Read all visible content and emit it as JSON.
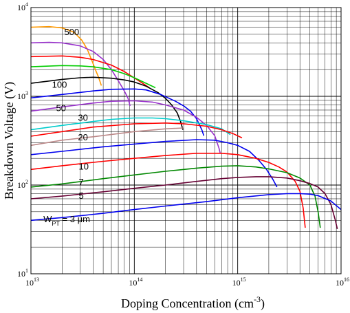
{
  "chart_data": {
    "type": "line",
    "xlabel": {
      "main": "Doping Concentration (cm",
      "exp": "-3",
      "tail": ")"
    },
    "ylabel": "Breakdown Voltage (V)",
    "x_scale": "log",
    "y_scale": "log",
    "xlim": [
      10000000000000.0,
      1e+16
    ],
    "ylim": [
      10,
      10000
    ],
    "grid": true,
    "x_ticks": [
      {
        "value": 10000000000000.0,
        "base": "10",
        "exp": "13"
      },
      {
        "value": 100000000000000.0,
        "base": "10",
        "exp": "14"
      },
      {
        "value": 1000000000000000.0,
        "base": "10",
        "exp": "15"
      },
      {
        "value": 1e+16,
        "base": "10",
        "exp": "16"
      }
    ],
    "y_ticks": [
      {
        "value": 10,
        "base": "10",
        "exp": "1"
      },
      {
        "value": 100,
        "base": "10",
        "exp": "2"
      },
      {
        "value": 1000,
        "base": "10",
        "exp": "3"
      },
      {
        "value": 10000,
        "base": "10",
        "exp": "4"
      }
    ],
    "annotations": [
      {
        "text": "500",
        "x": 21000000000000.0,
        "y": 4900
      },
      {
        "text": "100",
        "x": 16000000000000.0,
        "y": 1250
      },
      {
        "text": "50",
        "x": 17500000000000.0,
        "y": 680
      },
      {
        "text": "30",
        "x": 28500000000000.0,
        "y": 530
      },
      {
        "text": "20",
        "x": 28500000000000.0,
        "y": 320
      },
      {
        "text": "10",
        "x": 29000000000000.0,
        "y": 150
      },
      {
        "text": "7",
        "x": 29000000000000.0,
        "y": 100
      },
      {
        "text": "5",
        "x": 29000000000000.0,
        "y": 70
      }
    ],
    "wpt_label": {
      "w": "W",
      "sub": "PT",
      "rest": " = 3 μm",
      "x": 13200000000000.0,
      "y": 38
    },
    "series": [
      {
        "color": "#ff9900",
        "points": [
          [
            10000000000000.0,
            6000
          ],
          [
            15000000000000.0,
            6100
          ],
          [
            20000000000000.0,
            5900
          ],
          [
            26000000000000.0,
            5300
          ],
          [
            31000000000000.0,
            4300
          ],
          [
            35000000000000.0,
            3400
          ],
          [
            39000000000000.0,
            2500
          ],
          [
            42000000000000.0,
            2000
          ],
          [
            45000000000000.0,
            1650
          ],
          [
            48000000000000.0,
            1320
          ]
        ]
      },
      {
        "color": "#9933cc",
        "points": [
          [
            10000000000000.0,
            4000
          ],
          [
            15000000000000.0,
            4050
          ],
          [
            20000000000000.0,
            4000
          ],
          [
            30000000000000.0,
            3700
          ],
          [
            40000000000000.0,
            3200
          ],
          [
            50000000000000.0,
            2600
          ],
          [
            60000000000000.0,
            2000
          ],
          [
            70000000000000.0,
            1500
          ],
          [
            80000000000000.0,
            1150
          ],
          [
            87000000000000.0,
            950
          ],
          [
            91000000000000.0,
            780
          ]
        ]
      },
      {
        "color": "#ff0000",
        "points": [
          [
            10000000000000.0,
            2800
          ],
          [
            20000000000000.0,
            2850
          ],
          [
            30000000000000.0,
            2750
          ],
          [
            40000000000000.0,
            2600
          ],
          [
            60000000000000.0,
            2250
          ],
          [
            80000000000000.0,
            1900
          ],
          [
            110000000000000.0,
            1500
          ],
          [
            140000000000000.0,
            1250
          ]
        ]
      },
      {
        "color": "#00cc00",
        "points": [
          [
            10000000000000.0,
            2150
          ],
          [
            20000000000000.0,
            2220
          ],
          [
            30000000000000.0,
            2200
          ],
          [
            40000000000000.0,
            2150
          ],
          [
            60000000000000.0,
            2000
          ],
          [
            80000000000000.0,
            1800
          ],
          [
            100000000000000.0,
            1620
          ],
          [
            130000000000000.0,
            1400
          ],
          [
            160000000000000.0,
            1250
          ]
        ]
      },
      {
        "color": "#000000",
        "points": [
          [
            10000000000000.0,
            1400
          ],
          [
            20000000000000.0,
            1550
          ],
          [
            30000000000000.0,
            1620
          ],
          [
            40000000000000.0,
            1640
          ],
          [
            60000000000000.0,
            1600
          ],
          [
            80000000000000.0,
            1530
          ],
          [
            100000000000000.0,
            1450
          ],
          [
            130000000000000.0,
            1300
          ],
          [
            170000000000000.0,
            1100
          ],
          [
            200000000000000.0,
            950
          ],
          [
            230000000000000.0,
            800
          ],
          [
            260000000000000.0,
            650
          ],
          [
            280000000000000.0,
            520
          ],
          [
            295000000000000.0,
            420
          ]
        ]
      },
      {
        "color": "#0000ee",
        "points": [
          [
            10000000000000.0,
            960
          ],
          [
            20000000000000.0,
            1050
          ],
          [
            40000000000000.0,
            1150
          ],
          [
            60000000000000.0,
            1200
          ],
          [
            100000000000000.0,
            1210
          ],
          [
            130000000000000.0,
            1180
          ],
          [
            180000000000000.0,
            1050
          ],
          [
            250000000000000.0,
            880
          ],
          [
            300000000000000.0,
            780
          ],
          [
            350000000000000.0,
            680
          ],
          [
            400000000000000.0,
            560
          ],
          [
            450000000000000.0,
            420
          ],
          [
            470000000000000.0,
            360
          ]
        ]
      },
      {
        "color": "#9933cc",
        "points": [
          [
            10000000000000.0,
            680
          ],
          [
            20000000000000.0,
            760
          ],
          [
            40000000000000.0,
            840
          ],
          [
            60000000000000.0,
            880
          ],
          [
            100000000000000.0,
            890
          ],
          [
            150000000000000.0,
            860
          ],
          [
            200000000000000.0,
            800
          ],
          [
            300000000000000.0,
            700
          ],
          [
            400000000000000.0,
            580
          ],
          [
            500000000000000.0,
            470
          ],
          [
            600000000000000.0,
            360
          ],
          [
            660000000000000.0,
            260
          ],
          [
            680000000000000.0,
            225
          ]
        ]
      },
      {
        "color": "#00cccc",
        "points": [
          [
            10000000000000.0,
            420
          ],
          [
            20000000000000.0,
            470
          ],
          [
            40000000000000.0,
            520
          ],
          [
            60000000000000.0,
            550
          ],
          [
            100000000000000.0,
            570
          ],
          [
            150000000000000.0,
            570
          ],
          [
            200000000000000.0,
            560
          ],
          [
            300000000000000.0,
            530
          ],
          [
            500000000000000.0,
            480
          ],
          [
            700000000000000.0,
            430
          ],
          [
            850000000000000.0,
            370
          ]
        ]
      },
      {
        "color": "#ff0000",
        "points": [
          [
            10000000000000.0,
            355
          ],
          [
            20000000000000.0,
            400
          ],
          [
            40000000000000.0,
            450
          ],
          [
            100000000000000.0,
            490
          ],
          [
            200000000000000.0,
            500
          ],
          [
            300000000000000.0,
            490
          ],
          [
            500000000000000.0,
            460
          ],
          [
            700000000000000.0,
            420
          ],
          [
            900000000000000.0,
            380
          ],
          [
            1100000000000000.0,
            340
          ]
        ]
      },
      {
        "color": "#bb8888",
        "points": [
          [
            10000000000000.0,
            280
          ],
          [
            20000000000000.0,
            320
          ],
          [
            40000000000000.0,
            350
          ],
          [
            100000000000000.0,
            400
          ],
          [
            200000000000000.0,
            430
          ],
          [
            300000000000000.0,
            440
          ]
        ]
      },
      {
        "color": "#0000ee",
        "points": [
          [
            10000000000000.0,
            220
          ],
          [
            20000000000000.0,
            240
          ],
          [
            50000000000000.0,
            270
          ],
          [
            100000000000000.0,
            290
          ],
          [
            200000000000000.0,
            310
          ],
          [
            400000000000000.0,
            325
          ],
          [
            600000000000000.0,
            320
          ],
          [
            800000000000000.0,
            300
          ],
          [
            1000000000000000.0,
            280
          ],
          [
            1300000000000000.0,
            240
          ],
          [
            1600000000000000.0,
            190
          ],
          [
            1900000000000000.0,
            150
          ],
          [
            2200000000000000.0,
            115
          ],
          [
            2400000000000000.0,
            95
          ]
        ]
      },
      {
        "color": "#ff0000",
        "points": [
          [
            10000000000000.0,
            150
          ],
          [
            20000000000000.0,
            165
          ],
          [
            50000000000000.0,
            185
          ],
          [
            100000000000000.0,
            200
          ],
          [
            200000000000000.0,
            215
          ],
          [
            400000000000000.0,
            228
          ],
          [
            700000000000000.0,
            228
          ],
          [
            1000000000000000.0,
            220
          ],
          [
            1500000000000000.0,
            200
          ],
          [
            2000000000000000.0,
            180
          ],
          [
            2500000000000000.0,
            160
          ],
          [
            3000000000000000.0,
            140
          ],
          [
            3600000000000000.0,
            110
          ],
          [
            4000000000000000.0,
            85
          ],
          [
            4300000000000000.0,
            55
          ],
          [
            4500000000000000.0,
            33
          ]
        ]
      },
      {
        "color": "#008800",
        "points": [
          [
            10000000000000.0,
            95
          ],
          [
            20000000000000.0,
            103
          ],
          [
            50000000000000.0,
            118
          ],
          [
            100000000000000.0,
            130
          ],
          [
            200000000000000.0,
            143
          ],
          [
            400000000000000.0,
            155
          ],
          [
            700000000000000.0,
            163
          ],
          [
            1000000000000000.0,
            165
          ],
          [
            1500000000000000.0,
            160
          ],
          [
            2000000000000000.0,
            152
          ],
          [
            3000000000000000.0,
            138
          ],
          [
            4000000000000000.0,
            120
          ],
          [
            5000000000000000.0,
            100
          ],
          [
            5600000000000000.0,
            75
          ],
          [
            6000000000000000.0,
            50
          ],
          [
            6300000000000000.0,
            33
          ]
        ]
      },
      {
        "color": "#660033",
        "points": [
          [
            10000000000000.0,
            70
          ],
          [
            20000000000000.0,
            75
          ],
          [
            50000000000000.0,
            84
          ],
          [
            100000000000000.0,
            92
          ],
          [
            200000000000000.0,
            100
          ],
          [
            400000000000000.0,
            110
          ],
          [
            700000000000000.0,
            118
          ],
          [
            1000000000000000.0,
            122
          ],
          [
            1500000000000000.0,
            124
          ],
          [
            2000000000000000.0,
            124
          ],
          [
            3000000000000000.0,
            120
          ],
          [
            4000000000000000.0,
            112
          ],
          [
            5000000000000000.0,
            104
          ],
          [
            6000000000000000.0,
            95
          ],
          [
            7000000000000000.0,
            80
          ],
          [
            8000000000000000.0,
            60
          ],
          [
            8800000000000000.0,
            40
          ],
          [
            9200000000000000.0,
            32
          ]
        ]
      },
      {
        "color": "#0000ee",
        "points": [
          [
            10000000000000.0,
            40
          ],
          [
            20000000000000.0,
            43
          ],
          [
            50000000000000.0,
            48
          ],
          [
            100000000000000.0,
            53
          ],
          [
            200000000000000.0,
            58
          ],
          [
            500000000000000.0,
            65
          ],
          [
            1000000000000000.0,
            72
          ],
          [
            2000000000000000.0,
            78
          ],
          [
            3000000000000000.0,
            80
          ],
          [
            4000000000000000.0,
            80
          ],
          [
            5000000000000000.0,
            79
          ],
          [
            6000000000000000.0,
            76
          ],
          [
            8000000000000000.0,
            66
          ],
          [
            1e+16,
            53
          ]
        ]
      }
    ]
  }
}
